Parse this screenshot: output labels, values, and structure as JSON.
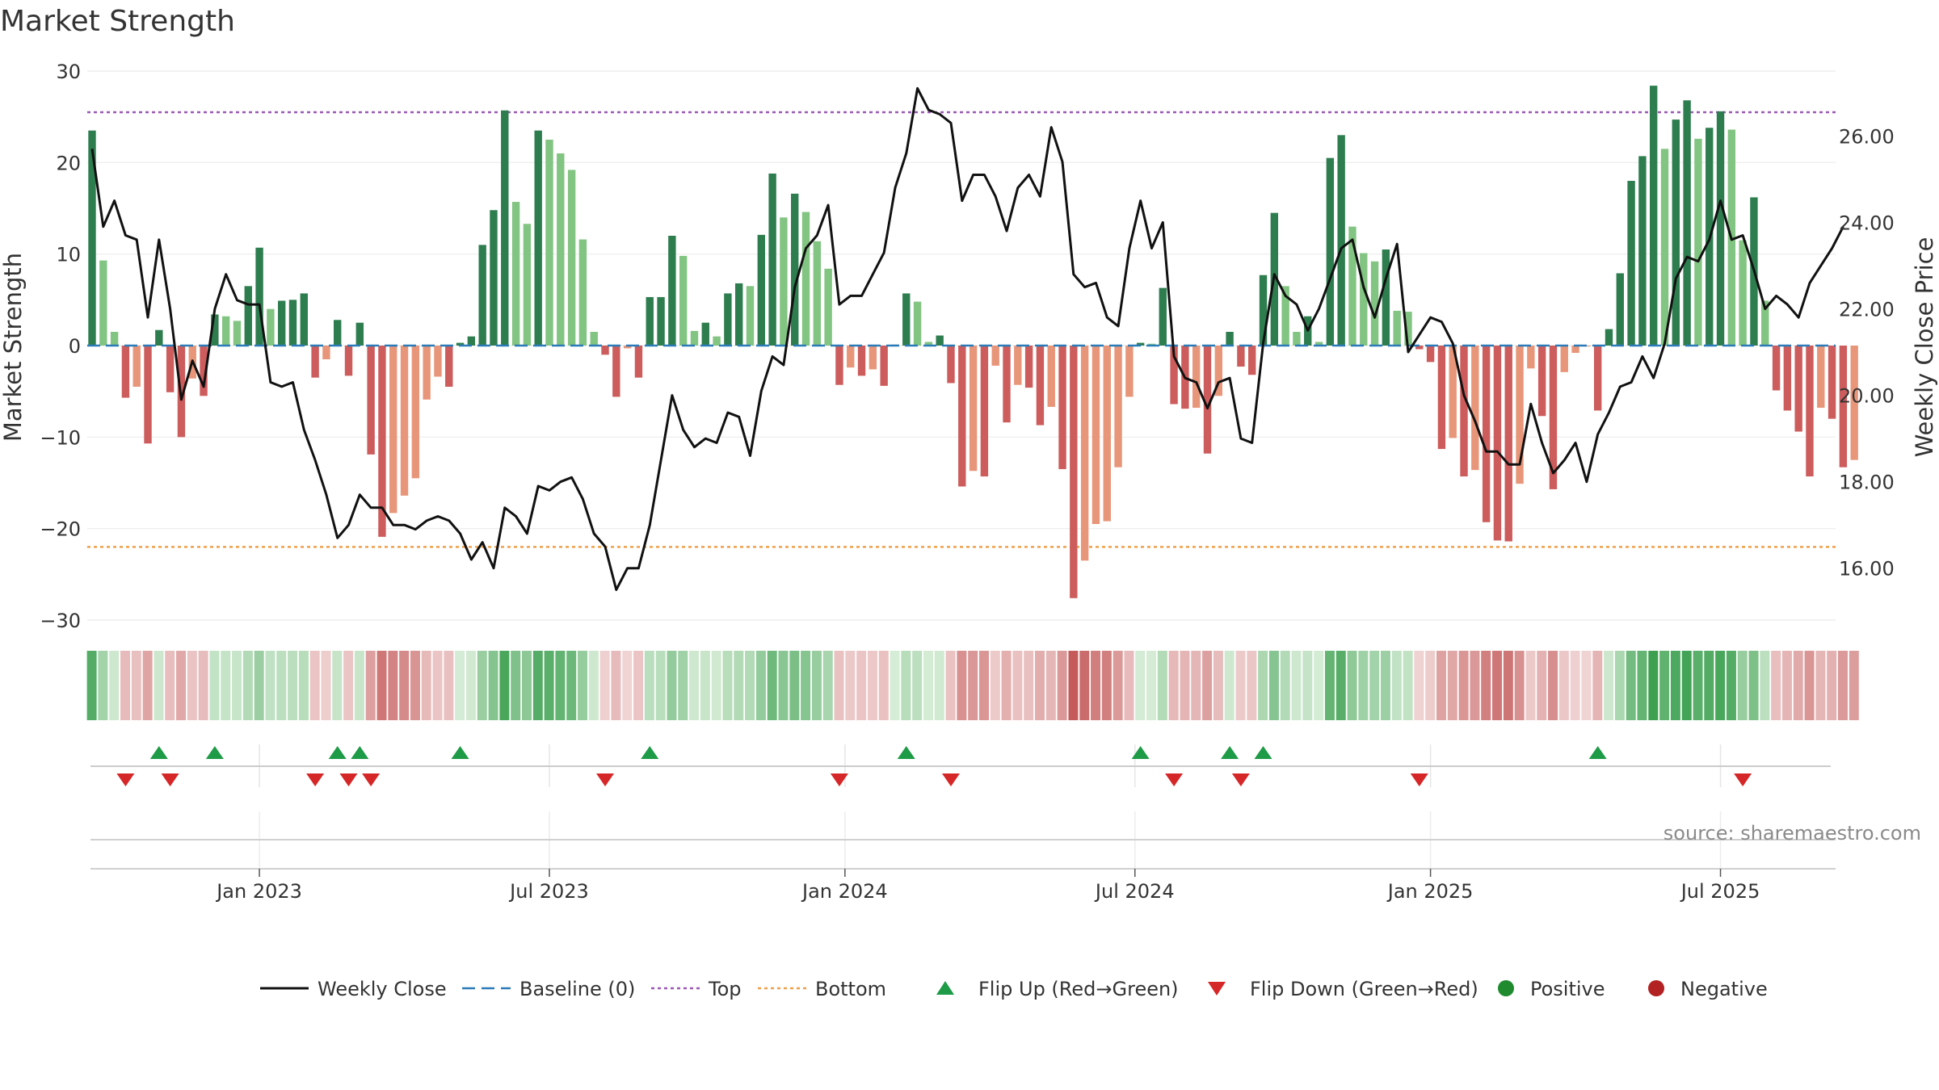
{
  "chart_data": {
    "type": "bar",
    "title": "Market Strength",
    "ylabel_left": "Market Strength",
    "ylabel_right": "Weekly Close Price",
    "ylim_left": [
      -30,
      30
    ],
    "ylim_right": [
      14.8,
      27.5
    ],
    "left_ticks": [
      {
        "v": 30,
        "t": "30"
      },
      {
        "v": 20,
        "t": "20"
      },
      {
        "v": 10,
        "t": "10"
      },
      {
        "v": 0,
        "t": "0"
      },
      {
        "v": -10,
        "t": "−10"
      },
      {
        "v": -20,
        "t": "−20"
      },
      {
        "v": -30,
        "t": "−30"
      }
    ],
    "right_ticks": [
      {
        "v": 26,
        "t": "26.00"
      },
      {
        "v": 24,
        "t": "24.00"
      },
      {
        "v": 22,
        "t": "22.00"
      },
      {
        "v": 20,
        "t": "20.00"
      },
      {
        "v": 18,
        "t": "18.00"
      },
      {
        "v": 16,
        "t": "16.00"
      }
    ],
    "x_ticks": [
      {
        "w": 15,
        "t": "Jan 2023"
      },
      {
        "w": 41,
        "t": "Jul 2023"
      },
      {
        "w": 67.5,
        "t": "Jan 2024"
      },
      {
        "w": 93.5,
        "t": "Jul 2024"
      },
      {
        "w": 120,
        "t": "Jan 2025"
      },
      {
        "w": 146,
        "t": "Jul 2025"
      }
    ],
    "top_line": 25.5,
    "bottom_line": -22,
    "strength": [
      23.5,
      9.3,
      1.5,
      -5.7,
      -4.5,
      -10.7,
      1.7,
      -5.1,
      -10.0,
      -3.6,
      -5.5,
      3.4,
      3.2,
      2.7,
      6.5,
      10.7,
      4.0,
      4.9,
      5.0,
      5.7,
      -3.5,
      -1.5,
      2.8,
      -3.3,
      2.5,
      -11.9,
      -20.9,
      -18.3,
      -16.4,
      -14.5,
      -5.9,
      -3.4,
      -4.5,
      0.3,
      1.0,
      11.0,
      14.8,
      25.7,
      15.7,
      13.3,
      23.5,
      22.5,
      21.0,
      19.2,
      11.6,
      1.5,
      -1.0,
      -5.6,
      -0.3,
      -3.5,
      5.3,
      5.3,
      12.0,
      9.8,
      1.6,
      2.5,
      1.0,
      5.7,
      6.8,
      6.5,
      12.1,
      18.8,
      14.0,
      16.6,
      14.6,
      11.4,
      8.4,
      -4.3,
      -2.4,
      -3.3,
      -2.6,
      -4.4,
      0.1,
      5.7,
      4.8,
      0.4,
      1.1,
      -4.1,
      -15.4,
      -13.7,
      -14.3,
      -2.2,
      -8.4,
      -4.3,
      -4.6,
      -8.7,
      -6.7,
      -13.5,
      -27.6,
      -23.5,
      -19.5,
      -19.2,
      -13.3,
      -5.6,
      0.3,
      0.2,
      6.3,
      -6.4,
      -6.9,
      -6.8,
      -11.8,
      -5.5,
      1.5,
      -2.3,
      -3.2,
      7.7,
      14.5,
      6.5,
      1.5,
      3.2,
      0.4,
      20.5,
      23.0,
      13.0,
      10.1,
      9.2,
      10.5,
      3.8,
      3.7,
      -0.4,
      -1.8,
      -11.3,
      -10.1,
      -14.3,
      -13.6,
      -19.3,
      -21.3,
      -21.4,
      -15.1,
      -2.5,
      -7.7,
      -15.7,
      -2.9,
      -0.8,
      -0.1,
      -7.1,
      1.8,
      7.9,
      18.0,
      20.7,
      28.4,
      21.5,
      24.7,
      26.8,
      22.6,
      23.8,
      25.6,
      23.6,
      11.5,
      16.2,
      4.9,
      -4.9,
      -7.1,
      -9.4,
      -14.3,
      -6.8,
      -8.0,
      -13.3,
      -12.5
    ],
    "weekly_close": [
      25.7,
      23.9,
      24.5,
      23.7,
      23.6,
      21.8,
      23.6,
      22.0,
      19.9,
      20.8,
      20.2,
      22.0,
      22.8,
      22.2,
      22.1,
      22.1,
      20.3,
      20.2,
      20.3,
      19.2,
      18.5,
      17.7,
      16.7,
      17.0,
      17.7,
      17.4,
      17.4,
      17.0,
      17.0,
      16.9,
      17.1,
      17.2,
      17.1,
      16.8,
      16.2,
      16.6,
      16.0,
      17.4,
      17.2,
      16.8,
      17.9,
      17.8,
      18.0,
      18.1,
      17.6,
      16.8,
      16.5,
      15.5,
      16.0,
      16.0,
      17.0,
      18.5,
      20.0,
      19.2,
      18.8,
      19.0,
      18.9,
      19.6,
      19.5,
      18.6,
      20.1,
      20.9,
      20.7,
      22.5,
      23.4,
      23.7,
      24.4,
      22.1,
      22.3,
      22.3,
      22.8,
      23.3,
      24.8,
      25.6,
      27.1,
      26.6,
      26.5,
      26.3,
      24.5,
      25.1,
      25.1,
      24.6,
      23.8,
      24.8,
      25.1,
      24.6,
      26.2,
      25.4,
      22.8,
      22.5,
      22.6,
      21.8,
      21.6,
      23.4,
      24.5,
      23.4,
      24.0,
      20.9,
      20.4,
      20.3,
      19.7,
      20.3,
      20.4,
      19.0,
      18.9,
      21.2,
      22.8,
      22.3,
      22.1,
      21.5,
      22.0,
      22.7,
      23.4,
      23.6,
      22.5,
      21.8,
      22.7,
      23.5,
      21.0,
      21.4,
      21.8,
      21.7,
      21.2,
      20.0,
      19.4,
      18.7,
      18.7,
      18.4,
      18.4,
      19.8,
      18.9,
      18.2,
      18.5,
      18.9,
      18.0,
      19.1,
      19.6,
      20.2,
      20.3,
      20.9,
      20.4,
      21.2,
      22.7,
      23.2,
      23.1,
      23.6,
      24.5,
      23.6,
      23.7,
      22.9,
      22.0,
      22.3,
      22.1,
      21.8,
      22.6,
      23.0,
      23.4,
      23.9
    ],
    "flip_up_weeks": [
      6,
      11,
      22,
      24,
      33,
      50,
      73,
      94,
      102,
      105,
      135
    ],
    "flip_down_weeks": [
      3,
      7,
      20,
      23,
      25,
      46,
      67,
      77,
      97,
      103,
      119,
      148
    ],
    "legend": [
      {
        "key": "line",
        "label": "Weekly Close",
        "color": "#111111"
      },
      {
        "key": "baseline",
        "label": "Baseline (0)",
        "color": "#2b7bb9"
      },
      {
        "key": "top",
        "label": "Top",
        "color": "#9b59b6"
      },
      {
        "key": "bottom",
        "label": "Bottom",
        "color": "#f0a04b"
      },
      {
        "key": "flipup",
        "label": "Flip Up (Red→Green)",
        "color": "#1e9b46"
      },
      {
        "key": "flipdown",
        "label": "Flip Down (Green→Red)",
        "color": "#d62728"
      },
      {
        "key": "pos",
        "label": "Positive",
        "color": "#1f8a2e"
      },
      {
        "key": "neg",
        "label": "Negative",
        "color": "#b22222"
      }
    ],
    "source": "source: sharemaestro.com"
  }
}
